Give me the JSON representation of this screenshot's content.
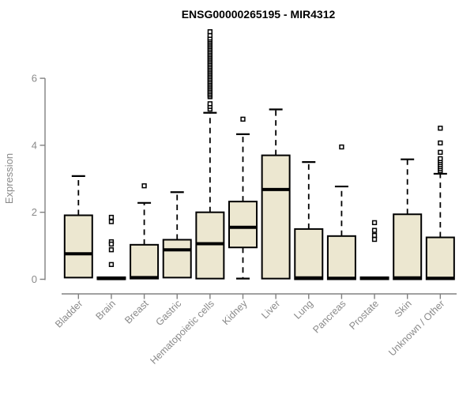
{
  "title": "ENSG00000265195 - MIR4312",
  "chart_data": {
    "type": "box",
    "title": "ENSG00000265195 - MIR4312",
    "xlabel": "",
    "ylabel": "Expression",
    "yticks": [
      0,
      2,
      4,
      6
    ],
    "ylim": [
      -0.45,
      7.5
    ],
    "grid": false,
    "legend": "none",
    "colors": {
      "box_fill": "#ece7d0",
      "box_stroke": "#000000",
      "axis": "#808080",
      "label": "#8a8a8a",
      "title": "#000000"
    },
    "categories": [
      "Bladder",
      "Brain",
      "Breast",
      "Gastric",
      "Hematopoietic cells",
      "Kidney",
      "Liver",
      "Lung",
      "Pancreas",
      "Prostate",
      "Skin",
      "Unknown / Other"
    ],
    "series": [
      {
        "name": "Bladder",
        "q1": 0.05,
        "median": 0.76,
        "q3": 1.91,
        "whisker_low": 0.05,
        "whisker_high": 3.08,
        "outliers": []
      },
      {
        "name": "Brain",
        "q1": 0.0,
        "median": 0.02,
        "q3": 0.06,
        "whisker_low": 0.0,
        "whisker_high": 0.06,
        "outliers": [
          1.85,
          1.72,
          1.12,
          1.05,
          0.88,
          0.44
        ]
      },
      {
        "name": "Breast",
        "q1": 0.02,
        "median": 0.05,
        "q3": 1.03,
        "whisker_low": 0.02,
        "whisker_high": 2.28,
        "outliers": [
          2.79
        ]
      },
      {
        "name": "Gastric",
        "q1": 0.05,
        "median": 0.88,
        "q3": 1.18,
        "whisker_low": 0.05,
        "whisker_high": 2.6,
        "outliers": []
      },
      {
        "name": "Hematopoietic cells",
        "q1": 0.02,
        "median": 1.06,
        "q3": 2.0,
        "whisker_low": 0.02,
        "whisker_high": 4.97,
        "outliers": [
          5.08,
          5.16,
          5.24,
          5.45,
          5.5,
          5.55,
          5.6,
          5.65,
          5.7,
          5.75,
          5.8,
          5.85,
          5.9,
          5.95,
          6.0,
          6.05,
          6.1,
          6.15,
          6.2,
          6.25,
          6.3,
          6.35,
          6.4,
          6.45,
          6.5,
          6.55,
          6.6,
          6.65,
          6.7,
          6.75,
          6.8,
          6.85,
          6.9,
          6.95,
          7.0,
          7.05,
          7.1,
          7.15,
          7.2,
          7.28,
          7.39
        ]
      },
      {
        "name": "Kidney",
        "q1": 0.95,
        "median": 1.55,
        "q3": 2.32,
        "whisker_low": 0.02,
        "whisker_high": 4.33,
        "outliers": [
          4.78
        ]
      },
      {
        "name": "Liver",
        "q1": 0.02,
        "median": 2.68,
        "q3": 3.7,
        "whisker_low": 0.02,
        "whisker_high": 5.07,
        "outliers": []
      },
      {
        "name": "Lung",
        "q1": 0.0,
        "median": 0.04,
        "q3": 1.5,
        "whisker_low": 0.0,
        "whisker_high": 3.5,
        "outliers": []
      },
      {
        "name": "Pancreas",
        "q1": 0.0,
        "median": 0.03,
        "q3": 1.29,
        "whisker_low": 0.0,
        "whisker_high": 2.77,
        "outliers": [
          3.95
        ]
      },
      {
        "name": "Prostate",
        "q1": 0.0,
        "median": 0.03,
        "q3": 0.06,
        "whisker_low": 0.0,
        "whisker_high": 0.06,
        "outliers": [
          1.69,
          1.46,
          1.31,
          1.19
        ]
      },
      {
        "name": "Skin",
        "q1": 0.0,
        "median": 0.04,
        "q3": 1.94,
        "whisker_low": 0.0,
        "whisker_high": 3.58,
        "outliers": []
      },
      {
        "name": "Unknown / Other",
        "q1": 0.0,
        "median": 0.03,
        "q3": 1.25,
        "whisker_low": 0.0,
        "whisker_high": 3.15,
        "outliers": [
          3.24,
          3.3,
          3.36,
          3.42,
          3.48,
          3.54,
          3.6,
          3.79,
          4.07,
          4.51
        ]
      }
    ]
  }
}
